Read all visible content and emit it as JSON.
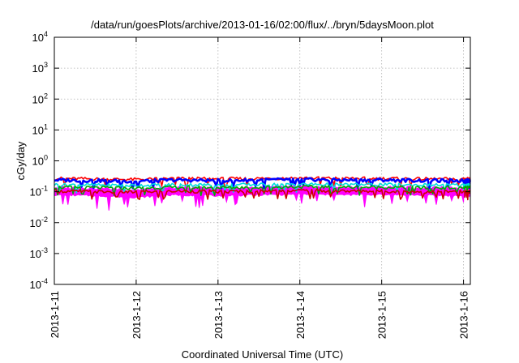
{
  "chart_data": {
    "type": "line",
    "title": "/data/run/goesPlots/archive/2013-01-16/02:00/flux/../bryn/5daysMoon.plot",
    "xlabel": "Coordinated Universal Time (UTC)",
    "ylabel": "cGy/day",
    "yscale": "log",
    "ylim": [
      0.0001,
      10000
    ],
    "xlim": [
      "2013-01-11T00:00",
      "2013-01-16T02:00"
    ],
    "grid": true,
    "y_ticks": [
      {
        "base": "10",
        "exp": "-4",
        "value": 0.0001
      },
      {
        "base": "10",
        "exp": "-3",
        "value": 0.001
      },
      {
        "base": "10",
        "exp": "-2",
        "value": 0.01
      },
      {
        "base": "10",
        "exp": "-1",
        "value": 0.1
      },
      {
        "base": "10",
        "exp": "0",
        "value": 1
      },
      {
        "base": "10",
        "exp": "1",
        "value": 10
      },
      {
        "base": "10",
        "exp": "2",
        "value": 100
      },
      {
        "base": "10",
        "exp": "3",
        "value": 1000
      },
      {
        "base": "10",
        "exp": "4",
        "value": 10000
      }
    ],
    "x_ticks": [
      {
        "label": "2013-1-11",
        "value": "2013-01-11T00:00"
      },
      {
        "label": "2013-1-12",
        "value": "2013-01-12T00:00"
      },
      {
        "label": "2013-1-13",
        "value": "2013-01-13T00:00"
      },
      {
        "label": "2013-1-14",
        "value": "2013-01-14T00:00"
      },
      {
        "label": "2013-1-15",
        "value": "2013-01-15T00:00"
      },
      {
        "label": "2013-1-16",
        "value": "2013-01-16T00:00"
      }
    ],
    "series": [
      {
        "color": "#ff00ff",
        "style": "band-low",
        "x": [
          "2013-01-11T00:00",
          "2013-01-11T12:00",
          "2013-01-12T00:00",
          "2013-01-12T12:00",
          "2013-01-13T00:00",
          "2013-01-13T12:00",
          "2013-01-14T00:00",
          "2013-01-14T12:00",
          "2013-01-15T00:00",
          "2013-01-15T12:00",
          "2013-01-16T00:00",
          "2013-01-16T02:00"
        ],
        "values": [
          0.09,
          0.085,
          0.075,
          0.09,
          0.085,
          0.09,
          0.095,
          0.09,
          0.092,
          0.088,
          0.085,
          0.085
        ]
      },
      {
        "color": "#ff0000",
        "style": "line",
        "x": [
          "2013-01-11T00:00",
          "2013-01-11T12:00",
          "2013-01-12T00:00",
          "2013-01-12T12:00",
          "2013-01-13T00:00",
          "2013-01-13T12:00",
          "2013-01-14T00:00",
          "2013-01-14T12:00",
          "2013-01-15T00:00",
          "2013-01-15T12:00",
          "2013-01-16T00:00",
          "2013-01-16T02:00"
        ],
        "values": [
          0.27,
          0.26,
          0.25,
          0.27,
          0.26,
          0.27,
          0.28,
          0.27,
          0.27,
          0.26,
          0.26,
          0.26
        ]
      },
      {
        "color": "#0000ff",
        "style": "line",
        "x": [
          "2013-01-11T00:00",
          "2013-01-11T12:00",
          "2013-01-12T00:00",
          "2013-01-12T12:00",
          "2013-01-13T00:00",
          "2013-01-13T12:00",
          "2013-01-14T00:00",
          "2013-01-14T12:00",
          "2013-01-15T00:00",
          "2013-01-15T12:00",
          "2013-01-16T00:00",
          "2013-01-16T02:00"
        ],
        "values": [
          0.24,
          0.23,
          0.22,
          0.24,
          0.23,
          0.24,
          0.25,
          0.24,
          0.24,
          0.23,
          0.23,
          0.23
        ]
      },
      {
        "color": "#00dddd",
        "style": "line",
        "x": [
          "2013-01-11T00:00",
          "2013-01-11T12:00",
          "2013-01-12T00:00",
          "2013-01-12T12:00",
          "2013-01-13T00:00",
          "2013-01-13T12:00",
          "2013-01-14T00:00",
          "2013-01-14T12:00",
          "2013-01-15T00:00",
          "2013-01-15T12:00",
          "2013-01-16T00:00",
          "2013-01-16T02:00"
        ],
        "values": [
          0.17,
          0.165,
          0.16,
          0.17,
          0.165,
          0.17,
          0.175,
          0.17,
          0.17,
          0.165,
          0.165,
          0.165
        ]
      },
      {
        "color": "#00aa00",
        "style": "line",
        "x": [
          "2013-01-11T00:00",
          "2013-01-11T12:00",
          "2013-01-12T00:00",
          "2013-01-12T12:00",
          "2013-01-13T00:00",
          "2013-01-13T12:00",
          "2013-01-14T00:00",
          "2013-01-14T12:00",
          "2013-01-15T00:00",
          "2013-01-15T12:00",
          "2013-01-16T00:00",
          "2013-01-16T02:00"
        ],
        "values": [
          0.14,
          0.135,
          0.13,
          0.14,
          0.135,
          0.14,
          0.145,
          0.14,
          0.14,
          0.135,
          0.135,
          0.135
        ]
      },
      {
        "color": "#cc0000",
        "style": "line",
        "x": [
          "2013-01-11T00:00",
          "2013-01-11T12:00",
          "2013-01-12T00:00",
          "2013-01-12T12:00",
          "2013-01-13T00:00",
          "2013-01-13T12:00",
          "2013-01-14T00:00",
          "2013-01-14T12:00",
          "2013-01-15T00:00",
          "2013-01-15T12:00",
          "2013-01-16T00:00",
          "2013-01-16T02:00"
        ],
        "values": [
          0.105,
          0.1,
          0.098,
          0.105,
          0.1,
          0.105,
          0.11,
          0.105,
          0.105,
          0.1,
          0.1,
          0.1
        ]
      }
    ]
  }
}
